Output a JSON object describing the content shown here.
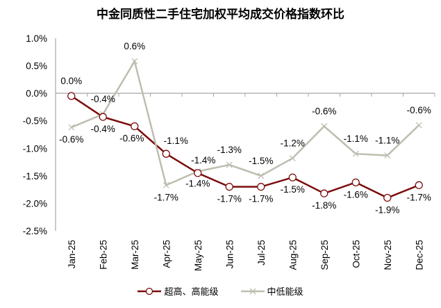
{
  "chart_data": {
    "type": "line",
    "title": "中金同质性二手住宅加权平均成交价格指数环比",
    "categories": [
      "Jan-25",
      "Feb-25",
      "Mar-25",
      "Apr-25",
      "May-25",
      "Jun-25",
      "Jul-25",
      "Aug-25",
      "Sep-25",
      "Oct-25",
      "Nov-25",
      "Dec-25"
    ],
    "ylim": [
      -2.5,
      1.0
    ],
    "yticks": [
      "1.0%",
      "0.5%",
      "0.0%",
      "-0.5%",
      "-1.0%",
      "-1.5%",
      "-2.0%",
      "-2.5%"
    ],
    "grid": false,
    "legend": "bottom",
    "series": [
      {
        "name": "超高、高能级",
        "color": "#7B0C0C",
        "marker": "circle",
        "values": [
          -0.05,
          -0.43,
          -0.6,
          -1.1,
          -1.45,
          -1.7,
          -1.7,
          -1.53,
          -1.82,
          -1.62,
          -1.9,
          -1.67
        ],
        "labels": [
          "0.0%",
          "-0.4%",
          "-0.6%",
          "-1.1%",
          "-1.4%",
          "-1.7%",
          "-1.7%",
          "-1.5%",
          "-1.8%",
          "-1.6%",
          "-1.9%",
          "-1.7%"
        ]
      },
      {
        "name": "中低能级",
        "color": "#BDBDB0",
        "marker": "x",
        "values": [
          -0.62,
          -0.38,
          0.58,
          -1.67,
          -1.42,
          -1.3,
          -1.5,
          -1.18,
          -0.6,
          -1.1,
          -1.13,
          -0.58
        ],
        "labels": [
          "-0.6%",
          "-0.4%",
          "0.6%",
          "-1.7%",
          "-1.4%",
          "-1.3%",
          "-1.5%",
          "-1.2%",
          "-0.6%",
          "-1.1%",
          "-1.1%",
          "-0.6%"
        ]
      }
    ]
  }
}
